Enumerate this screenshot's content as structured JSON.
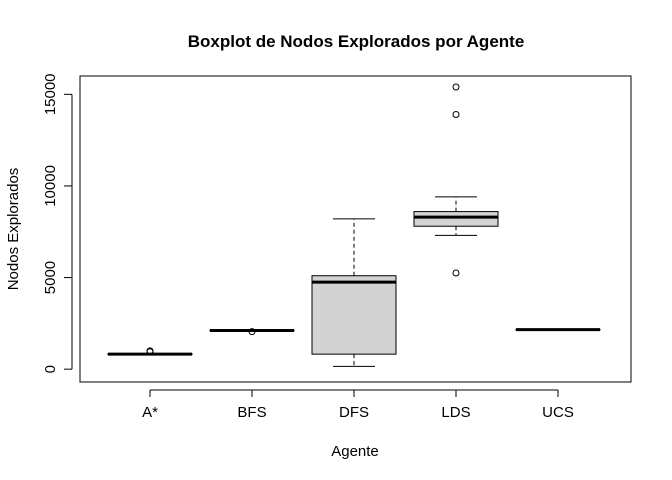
{
  "chart_data": {
    "type": "boxplot",
    "title": "Boxplot de Nodos Explorados por Agente",
    "xlabel": "Agente",
    "ylabel": "Nodos Explorados",
    "ylim": [
      -700,
      16000
    ],
    "yticks": [
      0,
      5000,
      10000,
      15000
    ],
    "ytick_labels": [
      "0",
      "5000",
      "10000",
      "15000"
    ],
    "grid": false,
    "legend": "none",
    "categories": [
      "A*",
      "BFS",
      "DFS",
      "LDS",
      "UCS"
    ],
    "boxes": [
      {
        "category": "A*",
        "whisker_low": 800,
        "q1": 800,
        "median": 820,
        "q3": 840,
        "whisker_high": 840,
        "outliers": [
          950,
          1000
        ]
      },
      {
        "category": "BFS",
        "whisker_low": 2100,
        "q1": 2100,
        "median": 2110,
        "q3": 2120,
        "whisker_high": 2120,
        "outliers": [
          2050
        ]
      },
      {
        "category": "DFS",
        "whisker_low": 150,
        "q1": 820,
        "median": 4750,
        "q3": 5100,
        "whisker_high": 8200,
        "outliers": []
      },
      {
        "category": "LDS",
        "whisker_low": 7300,
        "q1": 7800,
        "median": 8300,
        "q3": 8600,
        "whisker_high": 9400,
        "outliers": [
          5250,
          13900,
          15400
        ]
      },
      {
        "category": "UCS",
        "whisker_low": 2150,
        "q1": 2150,
        "median": 2160,
        "q3": 2170,
        "whisker_high": 2170,
        "outliers": []
      }
    ],
    "colors": {
      "box_fill": "#d3d3d3",
      "stroke": "#000000",
      "background": "#ffffff"
    }
  }
}
